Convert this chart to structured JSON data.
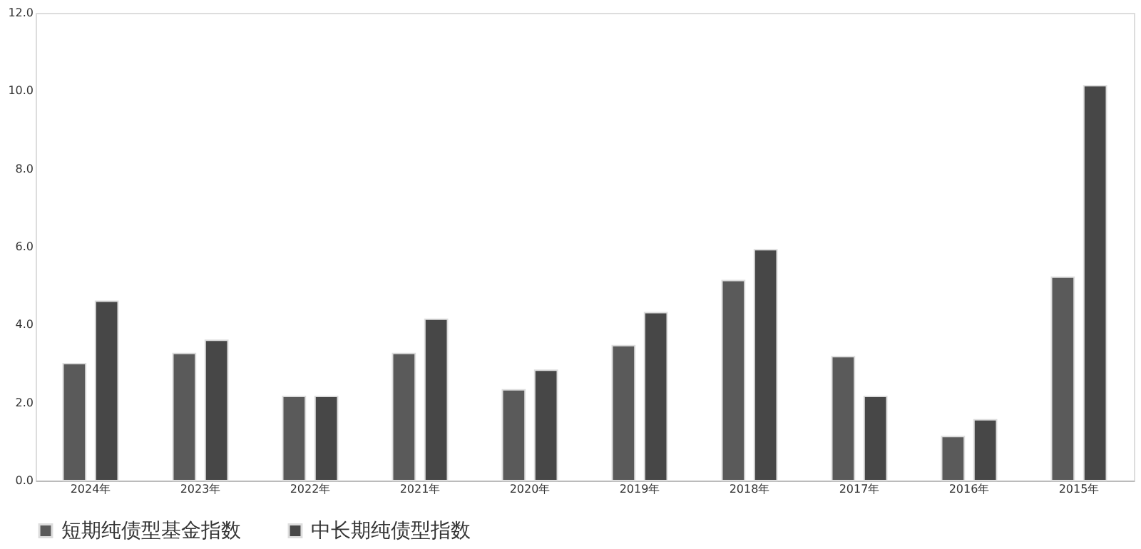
{
  "chart_data": {
    "type": "bar",
    "categories": [
      "2024年",
      "2023年",
      "2022年",
      "2021年",
      "2020年",
      "2019年",
      "2018年",
      "2017年",
      "2016年",
      "2015年"
    ],
    "series": [
      {
        "name": "短期纯债型基金指数",
        "color": "#5a5a5a",
        "values": [
          3.0,
          3.26,
          2.16,
          3.26,
          2.33,
          3.46,
          5.13,
          3.18,
          1.13,
          5.22
        ]
      },
      {
        "name": "中长期纯债型指数",
        "color": "#474747",
        "values": [
          4.6,
          3.6,
          2.16,
          4.14,
          2.83,
          4.31,
          5.92,
          2.16,
          1.56,
          10.13
        ]
      }
    ],
    "ylim": [
      0,
      12
    ],
    "yticks": [
      {
        "value": 0,
        "label": "0.0"
      },
      {
        "value": 2,
        "label": "2.0"
      },
      {
        "value": 4,
        "label": "4.0"
      },
      {
        "value": 6,
        "label": "6.0"
      },
      {
        "value": 8,
        "label": "8.0"
      },
      {
        "value": 10,
        "label": "10.0"
      },
      {
        "value": 12,
        "label": "12.0"
      }
    ],
    "grid": false,
    "legend": "bottom"
  }
}
